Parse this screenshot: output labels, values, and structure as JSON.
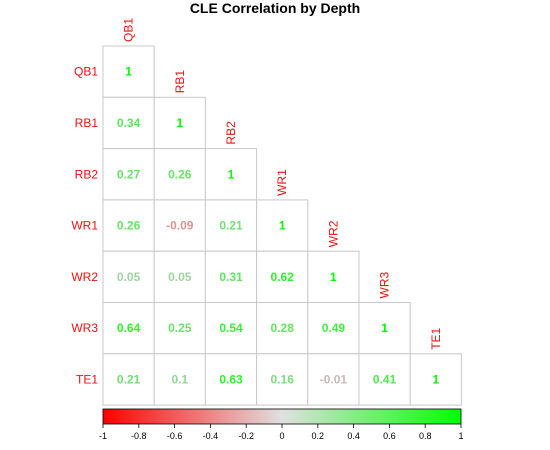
{
  "chart_data": {
    "type": "heatmap",
    "title": "CLE Correlation by Depth",
    "variables": [
      "QB1",
      "RB1",
      "RB2",
      "WR1",
      "WR2",
      "WR3",
      "TE1"
    ],
    "layout": "lower-triangle",
    "matrix": [
      [
        1
      ],
      [
        0.34,
        1
      ],
      [
        0.27,
        0.26,
        1
      ],
      [
        0.26,
        -0.09,
        0.21,
        1
      ],
      [
        0.05,
        0.05,
        0.31,
        0.62,
        1
      ],
      [
        0.64,
        0.25,
        0.54,
        0.28,
        0.49,
        1
      ],
      [
        0.21,
        0.1,
        0.63,
        0.16,
        -0.01,
        0.41,
        1
      ]
    ],
    "value_labels": [
      [
        "1"
      ],
      [
        "0.34",
        "1"
      ],
      [
        "0.27",
        "0.26",
        "1"
      ],
      [
        "0.26",
        "-0.09",
        "0.21",
        "1"
      ],
      [
        "0.05",
        "0.05",
        "0.31",
        "0.62",
        "1"
      ],
      [
        "0.64",
        "0.25",
        "0.54",
        "0.28",
        "0.49",
        "1"
      ],
      [
        "0.21",
        "0.1",
        "0.63",
        "0.16",
        "-0.01",
        "0.41",
        "1"
      ]
    ],
    "color_scale": {
      "min": -1,
      "max": 1,
      "low_color": "#ff0000",
      "mid_color": "#e0e0e0",
      "high_color": "#00ff00",
      "ticks": [
        "-1",
        "-0.8",
        "-0.6",
        "-0.4",
        "-0.2",
        "0",
        "0.2",
        "0.4",
        "0.6",
        "0.8",
        "1"
      ],
      "tick_values": [
        -1,
        -0.8,
        -0.6,
        -0.4,
        -0.2,
        0,
        0.2,
        0.4,
        0.6,
        0.8,
        1
      ]
    },
    "label_color": "#ee1111",
    "grid_color": "#c8c8c8",
    "legend": "bottom",
    "grid": true
  }
}
